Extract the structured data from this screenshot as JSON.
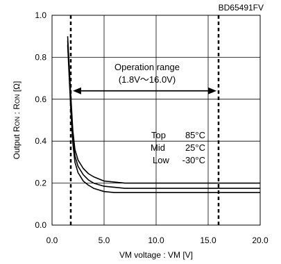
{
  "chart_data": {
    "type": "line",
    "part_number": "BD65491FV",
    "xlabel": "VM voltage : VM [V]",
    "ylabel_main": "Output R",
    "ylabel_sub1": "ON",
    "ylabel_mid": " : R",
    "ylabel_sub2": "ON",
    "ylabel_unit": " [Ω]",
    "xlim": [
      0,
      20
    ],
    "ylim": [
      0,
      1.0
    ],
    "x_ticks": [
      0,
      5,
      10,
      15,
      20
    ],
    "x_tick_labels": [
      "0.0",
      "5.0",
      "10.0",
      "15.0",
      "20.0"
    ],
    "y_ticks": [
      0,
      0.2,
      0.4,
      0.6,
      0.8,
      1.0
    ],
    "y_tick_labels": [
      "0.0",
      "0.2",
      "0.4",
      "0.6",
      "0.8",
      "1.0"
    ],
    "grid": true,
    "operation_range": {
      "line1": "Operation range",
      "line2": "(1.8V〜16.0V)",
      "min": 1.8,
      "max": 16.0
    },
    "legend": [
      {
        "label": "Top",
        "value": "85°C"
      },
      {
        "label": "Mid",
        "value": "25°C"
      },
      {
        "label": "Low",
        "value": "-30°C"
      }
    ],
    "series": [
      {
        "x": [
          1.5,
          1.8,
          2.0,
          2.2,
          2.5,
          3.0,
          3.5,
          4.0,
          5.0,
          6.0,
          7.0,
          20.0
        ],
        "values": [
          0.9,
          0.62,
          0.45,
          0.36,
          0.31,
          0.27,
          0.245,
          0.23,
          0.21,
          0.205,
          0.2,
          0.2
        ]
      },
      {
        "x": [
          1.5,
          1.8,
          2.0,
          2.2,
          2.5,
          3.0,
          3.5,
          4.0,
          5.0,
          6.0,
          7.0,
          20.0
        ],
        "values": [
          0.88,
          0.58,
          0.42,
          0.33,
          0.28,
          0.24,
          0.215,
          0.2,
          0.185,
          0.18,
          0.175,
          0.175
        ]
      },
      {
        "x": [
          1.5,
          1.8,
          2.0,
          2.2,
          2.5,
          3.0,
          3.5,
          4.0,
          5.0,
          6.0,
          7.0,
          20.0
        ],
        "values": [
          0.86,
          0.55,
          0.39,
          0.3,
          0.25,
          0.21,
          0.19,
          0.175,
          0.16,
          0.155,
          0.155,
          0.155
        ]
      }
    ]
  }
}
